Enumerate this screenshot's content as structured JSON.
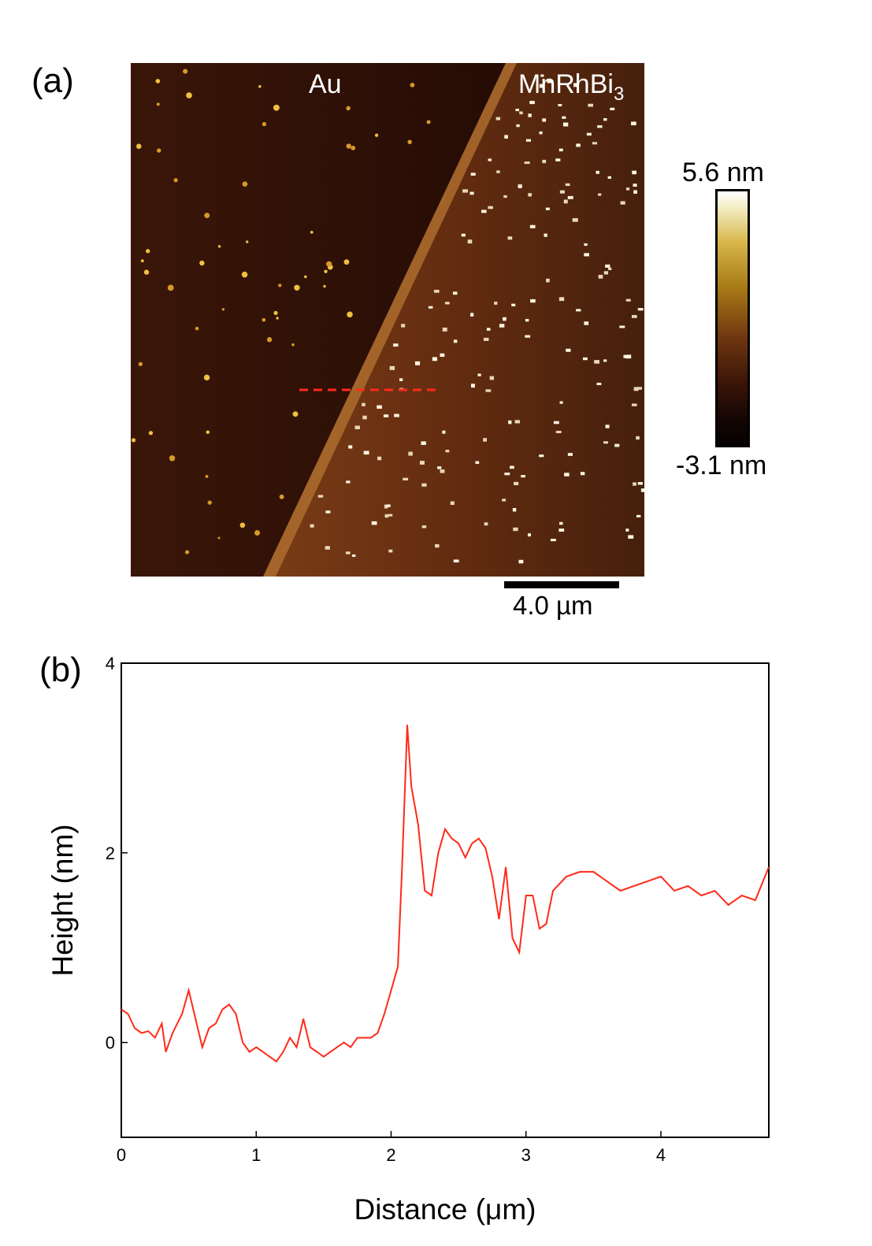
{
  "panel_a": {
    "label": "(a)",
    "region_left": "Au",
    "region_right_main": "MnRhBi",
    "region_right_sub": "3",
    "colorbar": {
      "max_label": "5.6 nm",
      "min_label": "-3.1 nm"
    },
    "scalebar_label": "4.0 µm",
    "line_color": "#ff2a1a"
  },
  "panel_b": {
    "label": "(b)"
  },
  "chart_data": {
    "type": "line",
    "title": "",
    "xlabel": "Distance (μm)",
    "ylabel": "Height (nm)",
    "xlim": [
      0,
      4.8
    ],
    "ylim": [
      -1,
      4
    ],
    "xticks": [
      "0",
      "1",
      "2",
      "3",
      "4"
    ],
    "yticks": [
      "0",
      "2",
      "4"
    ],
    "grid": false,
    "series": [
      {
        "color": "#ff2a1a",
        "x": [
          0,
          0.05,
          0.1,
          0.15,
          0.2,
          0.25,
          0.3,
          0.33,
          0.38,
          0.45,
          0.5,
          0.55,
          0.6,
          0.65,
          0.7,
          0.75,
          0.8,
          0.85,
          0.9,
          0.95,
          1.0,
          1.05,
          1.1,
          1.15,
          1.2,
          1.25,
          1.3,
          1.35,
          1.4,
          1.45,
          1.5,
          1.55,
          1.6,
          1.65,
          1.7,
          1.75,
          1.8,
          1.85,
          1.9,
          1.95,
          2.0,
          2.05,
          2.08,
          2.12,
          2.15,
          2.2,
          2.25,
          2.3,
          2.35,
          2.4,
          2.45,
          2.5,
          2.55,
          2.6,
          2.65,
          2.7,
          2.75,
          2.8,
          2.85,
          2.9,
          2.95,
          3.0,
          3.05,
          3.1,
          3.15,
          3.2,
          3.3,
          3.4,
          3.5,
          3.6,
          3.7,
          3.8,
          3.9,
          4.0,
          4.1,
          4.2,
          4.3,
          4.4,
          4.5,
          4.6,
          4.7,
          4.8
        ],
        "y": [
          0.35,
          0.3,
          0.15,
          0.1,
          0.12,
          0.05,
          0.2,
          -0.1,
          0.1,
          0.3,
          0.55,
          0.25,
          -0.05,
          0.15,
          0.2,
          0.35,
          0.4,
          0.3,
          0.0,
          -0.1,
          -0.05,
          -0.1,
          -0.15,
          -0.2,
          -0.1,
          0.05,
          -0.05,
          0.25,
          -0.05,
          -0.1,
          -0.15,
          -0.1,
          -0.05,
          0.0,
          -0.05,
          0.05,
          0.05,
          0.05,
          0.1,
          0.3,
          0.55,
          0.8,
          1.8,
          3.35,
          2.7,
          2.3,
          1.6,
          1.55,
          2.0,
          2.25,
          2.15,
          2.1,
          1.95,
          2.1,
          2.15,
          2.05,
          1.75,
          1.3,
          1.85,
          1.1,
          0.95,
          1.55,
          1.55,
          1.2,
          1.25,
          1.6,
          1.75,
          1.8,
          1.8,
          1.7,
          1.6,
          1.65,
          1.7,
          1.75,
          1.6,
          1.65,
          1.55,
          1.6,
          1.45,
          1.55,
          1.5,
          1.85
        ]
      }
    ]
  }
}
